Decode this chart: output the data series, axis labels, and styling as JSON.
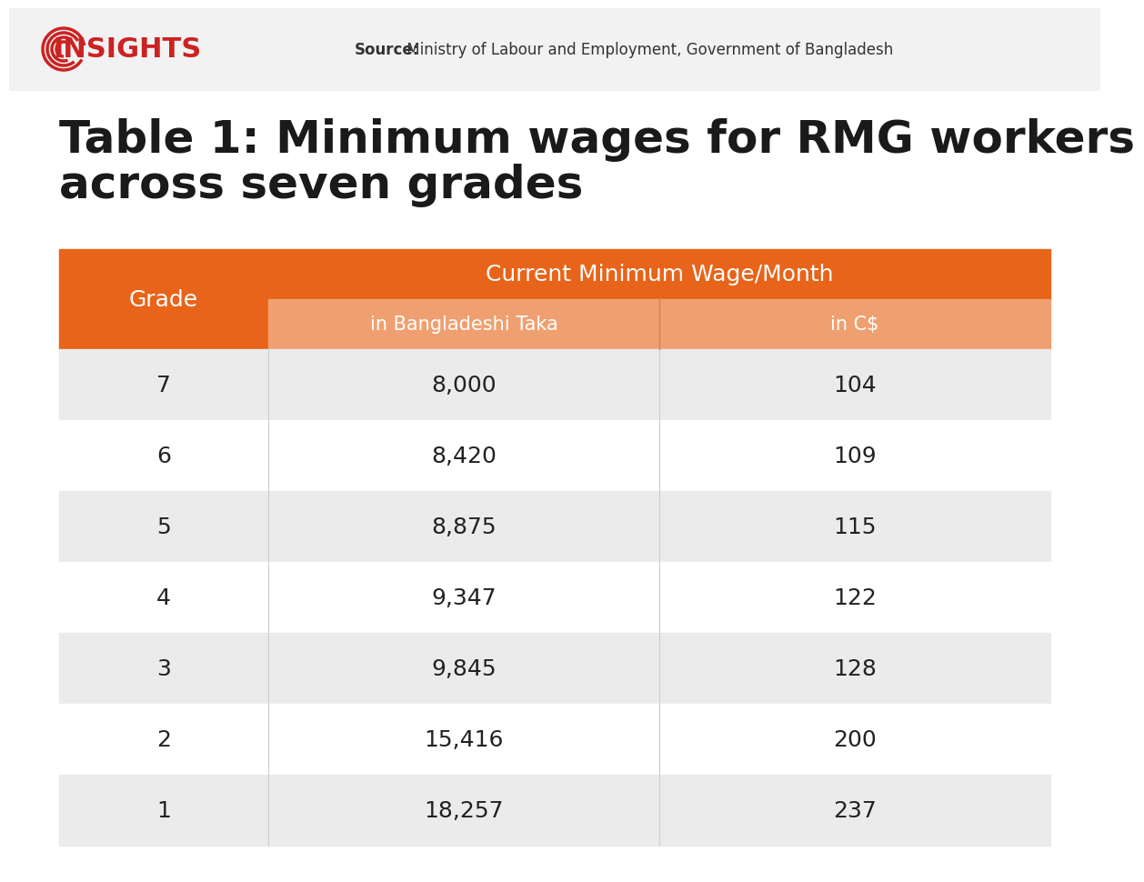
{
  "title_line1": "Table 1: Minimum wages for RMG workers",
  "title_line2": "across seven grades",
  "source_bold": "Source:",
  "source_text": " Ministry of Labour and Employment, Government of Bangladesh",
  "insights_text": "INSIGHTS",
  "col_header_main": "Current Minimum Wage/Month",
  "col_header_sub1": "in Bangladeshi Taka",
  "col_header_sub2": "in C$",
  "col_header_grade": "Grade",
  "grades": [
    "7",
    "6",
    "5",
    "4",
    "3",
    "2",
    "1"
  ],
  "taka_values": [
    "8,000",
    "8,420",
    "8,875",
    "9,347",
    "9,845",
    "15,416",
    "18,257"
  ],
  "cad_values": [
    "104",
    "109",
    "115",
    "122",
    "128",
    "200",
    "237"
  ],
  "orange_dark": "#E8641A",
  "orange_light": "#F0A070",
  "row_bg_dark": "#EBEBEB",
  "row_bg_light": "#FFFFFF",
  "header_text_color": "#FFFFFF",
  "cell_text_color": "#222222",
  "title_color": "#1A1A1A",
  "source_color": "#333333",
  "insights_color": "#CC2222",
  "background_color": "#FFFFFF"
}
